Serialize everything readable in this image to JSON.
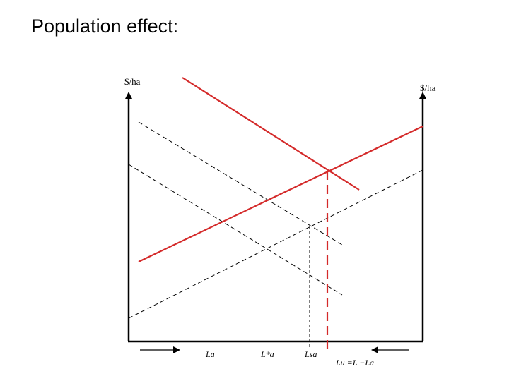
{
  "slide": {
    "title": "Population effect:"
  },
  "diagram": {
    "left_axis_label": "$/ha",
    "right_axis_label": "$/ha",
    "tick_labels": {
      "la": "La",
      "la_star": "L*a",
      "la_s": "Lsa",
      "lu": "Lu =L −La"
    },
    "colors": {
      "axis": "#000000",
      "highlight": "#d42a2a",
      "dashed": "#000000"
    }
  }
}
